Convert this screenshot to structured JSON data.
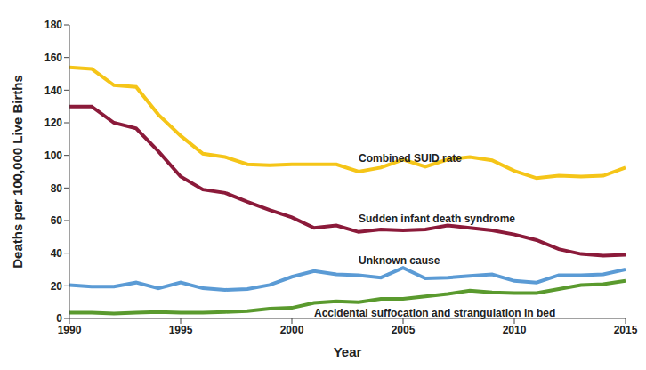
{
  "chart_data": {
    "type": "line",
    "xlabel": "Year",
    "ylabel": "Deaths per 100,000 Live Births",
    "x": [
      1990,
      1991,
      1992,
      1993,
      1994,
      1995,
      1996,
      1997,
      1998,
      1999,
      2000,
      2001,
      2002,
      2003,
      2004,
      2005,
      2006,
      2007,
      2008,
      2009,
      2010,
      2011,
      2012,
      2013,
      2014,
      2015
    ],
    "series": [
      {
        "name": "Combined SUID rate",
        "color": "#f5c518",
        "values": [
          154,
          153,
          143,
          142,
          125,
          112,
          101,
          99,
          94.5,
          94,
          94.5,
          94.5,
          94.5,
          90,
          92.5,
          97.5,
          93,
          97.5,
          99,
          97,
          90.5,
          86,
          87.5,
          87,
          87.5,
          92.5
        ]
      },
      {
        "name": "Sudden infant death syndrome",
        "color": "#8b1a3a",
        "values": [
          130,
          130,
          120,
          116.5,
          102.5,
          87,
          79,
          77,
          71.5,
          66.5,
          62,
          55.5,
          57,
          53,
          54.5,
          54,
          54.5,
          57,
          55.5,
          54,
          51.5,
          48,
          42.5,
          39.5,
          38.5,
          39
        ]
      },
      {
        "name": "Unknown cause",
        "color": "#5b9bd5",
        "values": [
          20.5,
          19.5,
          19.5,
          22,
          18.5,
          22,
          18.5,
          17.5,
          18,
          20.5,
          25.5,
          29,
          27,
          26.5,
          25,
          31,
          24.5,
          25,
          26,
          27,
          23,
          22,
          26.5,
          26.5,
          27,
          30
        ]
      },
      {
        "name": "Accidental suffocation and strangulation in bed",
        "color": "#5a9a2e",
        "values": [
          3.5,
          3.5,
          3,
          3.5,
          4,
          3.5,
          3.5,
          4,
          4.5,
          6,
          6.5,
          9.5,
          10.5,
          10,
          12,
          12,
          13.5,
          15,
          17,
          16,
          15.5,
          15.5,
          18,
          20.5,
          21,
          23
        ]
      }
    ],
    "xlim": [
      1990,
      2015
    ],
    "xticks": [
      1990,
      1995,
      2000,
      2005,
      2010,
      2015
    ],
    "ylim": [
      0,
      180
    ],
    "yticks": [
      0,
      20,
      40,
      60,
      80,
      100,
      120,
      140,
      160,
      180
    ],
    "grid": false
  }
}
